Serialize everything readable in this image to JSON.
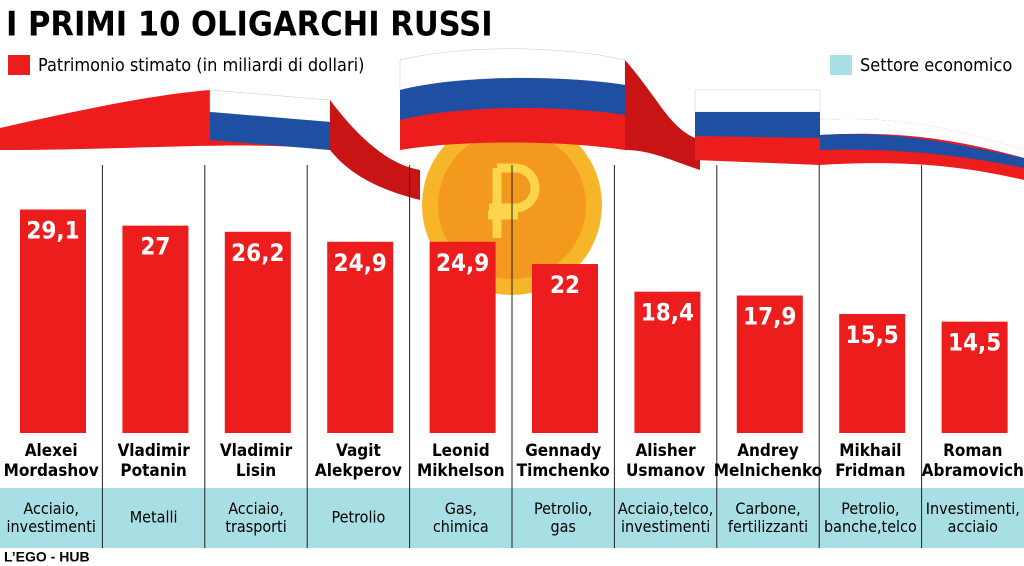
{
  "chart_data": {
    "type": "bar",
    "title": "I PRIMI 10 OLIGARCHI RUSSI",
    "series": [
      {
        "name": "Patrimonio stimato (in miliardi di dollari)",
        "color": "#ee1d1d",
        "values": [
          29.1,
          27,
          26.2,
          24.9,
          24.9,
          22,
          18.4,
          17.9,
          15.5,
          14.5
        ],
        "value_labels": [
          "29,1",
          "27",
          "26,2",
          "24,9",
          "24,9",
          "22",
          "18,4",
          "17,9",
          "15,5",
          "14,5"
        ]
      }
    ],
    "categories": [
      "Alexei\nMordashov",
      "Vladimir\nPotanin",
      "Vladimir\nLisin",
      "Vagit\nAlekperov",
      "Leonid\nMikhelson",
      "Gennady\nTimchenko",
      "Alisher\nUsmanov",
      "Andrey\nMelnichenko",
      "Mikhail\nFridman",
      "Roman\nAbramovich"
    ],
    "sector_legend": {
      "name": "Settore economico",
      "color": "#a7dfe5"
    },
    "sectors": [
      "Acciaio,\ninvestimenti",
      "Metalli",
      "Acciaio,\ntrasporti",
      "Petrolio",
      "Gas,\nchimica",
      "Petrolio,\ngas",
      "Acciaio,telco,\ninvestimenti",
      "Carbone,\nfertilizzanti",
      "Petrolio,\nbanche,telco",
      "Investimenti,\nacciaio"
    ],
    "source": "L’EGO - HUB"
  }
}
